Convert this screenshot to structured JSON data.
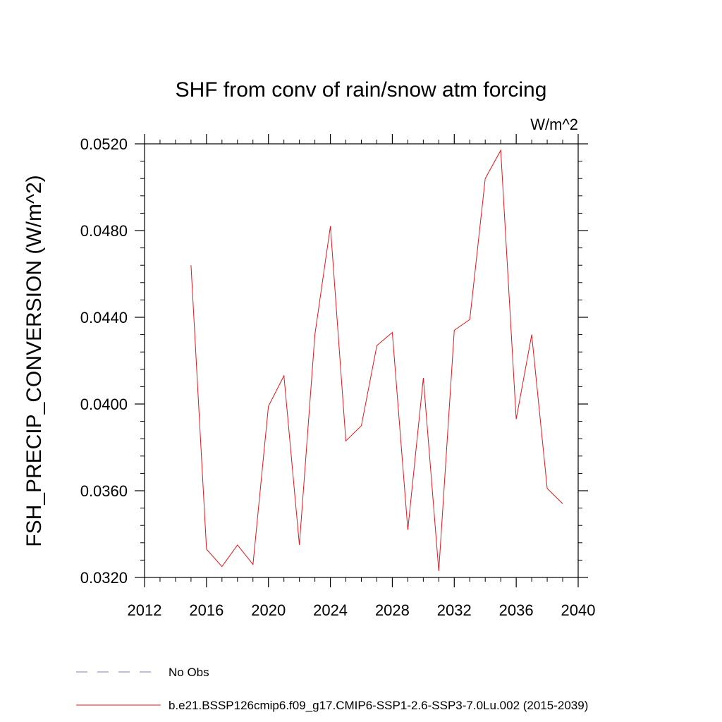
{
  "chart_data": {
    "type": "line",
    "title": "SHF from conv of rain/snow atm forcing",
    "units_label": "W/m^2",
    "ylabel": "FSH_PRECIP_CONVERSION  (W/m^2)",
    "xlabel": "",
    "xlim": [
      2012,
      2040
    ],
    "ylim": [
      0.032,
      0.052
    ],
    "x_ticks": [
      2012,
      2016,
      2020,
      2024,
      2028,
      2032,
      2036,
      2040
    ],
    "x_tick_labels": [
      "2012",
      "2016",
      "2020",
      "2024",
      "2028",
      "2032",
      "2036",
      "2040"
    ],
    "y_ticks": [
      0.032,
      0.036,
      0.04,
      0.044,
      0.048,
      0.052
    ],
    "y_tick_labels": [
      "0.0320",
      "0.0360",
      "0.0400",
      "0.0440",
      "0.0480",
      "0.0520"
    ],
    "grid": false,
    "legend_placement": "bottom",
    "legend": [
      {
        "label": "No Obs",
        "style": "dashed",
        "color": "#8878b8"
      },
      {
        "label": "b.e21.BSSP126cmip6.f09_g17.CMIP6-SSP1-2.6-SSP3-7.0Lu.002 (2015-2039)",
        "style": "solid",
        "color": "#e8151b"
      }
    ],
    "series": [
      {
        "color": "#e8151b",
        "x": [
          2015,
          2016,
          2017,
          2018,
          2019,
          2020,
          2021,
          2022,
          2023,
          2024,
          2025,
          2026,
          2027,
          2028,
          2029,
          2030,
          2031,
          2032,
          2033,
          2034,
          2035,
          2036,
          2037,
          2038,
          2039
        ],
        "values": [
          0.0464,
          0.0333,
          0.0325,
          0.0335,
          0.0326,
          0.0399,
          0.0413,
          0.0335,
          0.0432,
          0.0482,
          0.0383,
          0.039,
          0.0427,
          0.0433,
          0.0342,
          0.0412,
          0.0323,
          0.0434,
          0.0439,
          0.0504,
          0.0517,
          0.0393,
          0.0432,
          0.0361,
          0.0354
        ]
      }
    ]
  }
}
